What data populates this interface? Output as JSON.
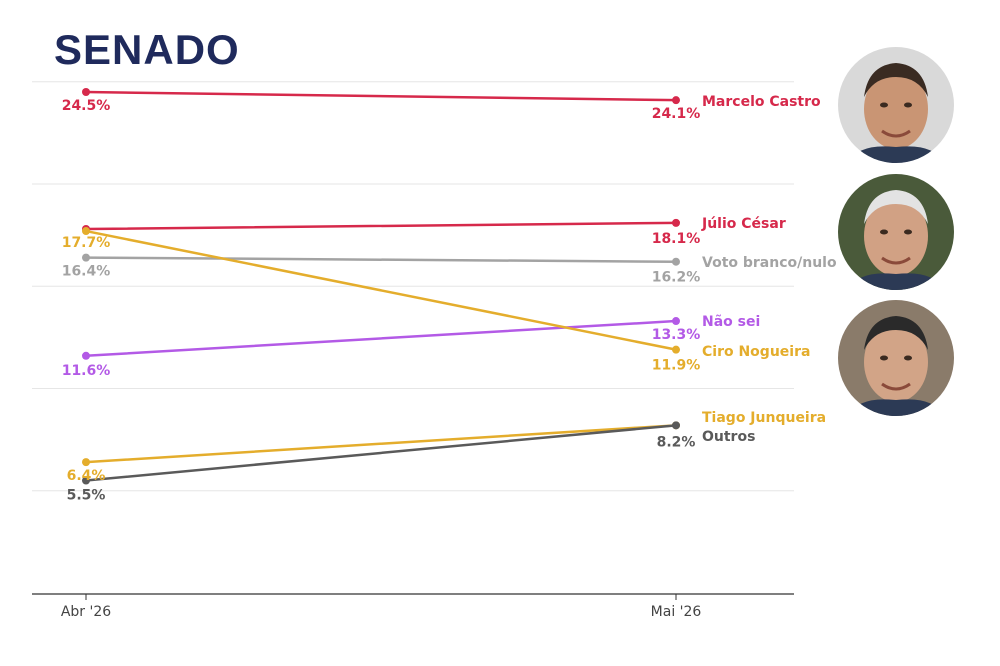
{
  "title": "SENADO",
  "chart_data": {
    "type": "line",
    "x": [
      "Abr '26",
      "Mai '26"
    ],
    "ylim": [
      0,
      26
    ],
    "grid": true,
    "series": [
      {
        "name": "Marcelo Castro",
        "values": [
          24.5,
          24.1
        ],
        "labels": [
          "24.5%",
          "24.1%"
        ],
        "color": "#d6294b"
      },
      {
        "name": "Júlio César",
        "values": [
          17.8,
          18.1
        ],
        "labels": [
          "",
          "18.1%"
        ],
        "color": "#d6294b"
      },
      {
        "name": "Voto branco/nulo",
        "values": [
          16.4,
          16.2
        ],
        "labels": [
          "16.4%",
          "16.2%"
        ],
        "color": "#a3a3a3"
      },
      {
        "name": "Não sei",
        "values": [
          11.6,
          13.3
        ],
        "labels": [
          "11.6%",
          "13.3%"
        ],
        "color": "#b35ae6"
      },
      {
        "name": "Ciro Nogueira",
        "values": [
          17.7,
          11.9
        ],
        "labels": [
          "17.7%",
          "11.9%"
        ],
        "color": "#e4ad2c"
      },
      {
        "name": "Tiago Junqueira",
        "values": [
          6.4,
          8.2
        ],
        "labels": [
          "6.4%",
          ""
        ],
        "color": "#e4ad2c"
      },
      {
        "name": "Outros",
        "values": [
          5.5,
          8.2
        ],
        "labels": [
          "5.5%",
          "8.2%"
        ],
        "color": "#5a5a5a"
      }
    ]
  },
  "avatars": [
    {
      "name": "Marcelo Castro",
      "skin": "#c99574",
      "hair": "#3a2b22",
      "bg": "#d9d9d9"
    },
    {
      "name": "Júlio César",
      "skin": "#d1a184",
      "hair": "#e3e3e3",
      "bg": "#4a5a3a"
    },
    {
      "name": "Ciro Nogueira",
      "skin": "#d2a487",
      "hair": "#2a2a2a",
      "bg": "#8a7b6a"
    }
  ]
}
